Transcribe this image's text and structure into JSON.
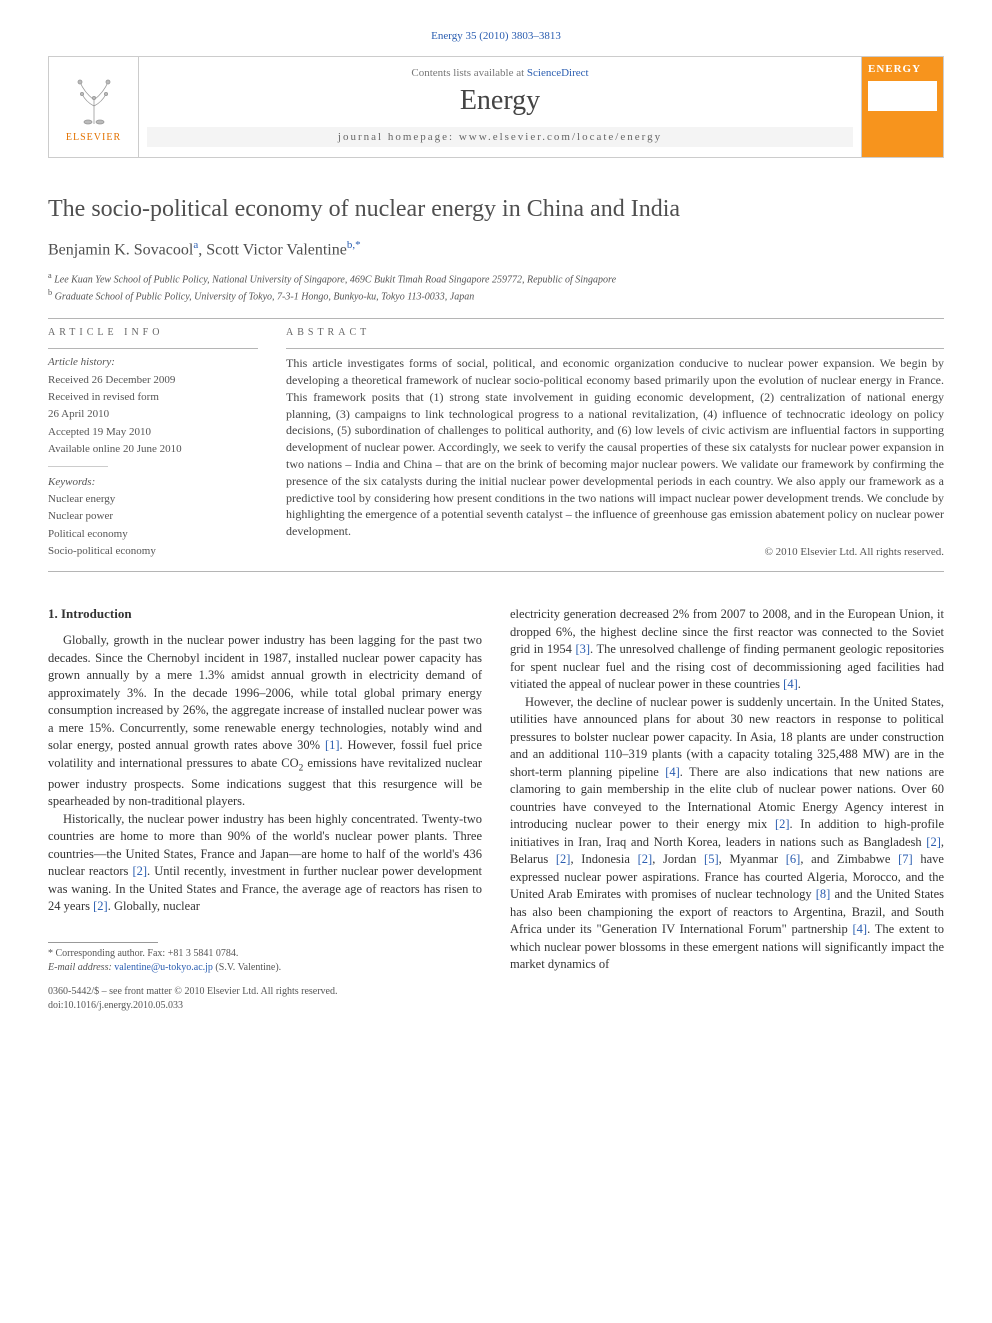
{
  "citation": "Energy 35 (2010) 3803–3813",
  "header": {
    "publisher": "ELSEVIER",
    "contents_prefix": "Contents lists available at ",
    "contents_link": "ScienceDirect",
    "journal": "Energy",
    "homepage_label": "journal homepage: ",
    "homepage_url": "www.elsevier.com/locate/energy",
    "cover_label": "ENERGY"
  },
  "title": "The socio-political economy of nuclear energy in China and India",
  "authors_html": "Benjamin K. Sovacool",
  "author2": "Scott Victor Valentine",
  "aff_a_sup": "a",
  "aff_b_sup": "b,",
  "star": "*",
  "affiliations": {
    "a": "Lee Kuan Yew School of Public Policy, National University of Singapore, 469C Bukit Timah Road Singapore 259772, Republic of Singapore",
    "b": "Graduate School of Public Policy, University of Tokyo, 7-3-1 Hongo, Bunkyo-ku, Tokyo 113-0033, Japan"
  },
  "info": {
    "heading": "ARTICLE INFO",
    "history_label": "Article history:",
    "received": "Received 26 December 2009",
    "revised1": "Received in revised form",
    "revised2": "26 April 2010",
    "accepted": "Accepted 19 May 2010",
    "online": "Available online 20 June 2010",
    "keywords_label": "Keywords:",
    "keywords": [
      "Nuclear energy",
      "Nuclear power",
      "Political economy",
      "Socio-political economy"
    ]
  },
  "abstract": {
    "heading": "ABSTRACT",
    "text": "This article investigates forms of social, political, and economic organization conducive to nuclear power expansion. We begin by developing a theoretical framework of nuclear socio-political economy based primarily upon the evolution of nuclear energy in France. This framework posits that (1) strong state involvement in guiding economic development, (2) centralization of national energy planning, (3) campaigns to link technological progress to a national revitalization, (4) influence of technocratic ideology on policy decisions, (5) subordination of challenges to political authority, and (6) low levels of civic activism are influential factors in supporting development of nuclear power. Accordingly, we seek to verify the causal properties of these six catalysts for nuclear power expansion in two nations – India and China – that are on the brink of becoming major nuclear powers. We validate our framework by confirming the presence of the six catalysts during the initial nuclear power developmental periods in each country. We also apply our framework as a predictive tool by considering how present conditions in the two nations will impact nuclear power development trends. We conclude by highlighting the emergence of a potential seventh catalyst – the influence of greenhouse gas emission abatement policy on nuclear power development.",
    "copyright": "© 2010 Elsevier Ltd. All rights reserved."
  },
  "section1": {
    "heading": "1. Introduction",
    "p1": "Globally, growth in the nuclear power industry has been lagging for the past two decades. Since the Chernobyl incident in 1987, installed nuclear power capacity has grown annually by a mere 1.3% amidst annual growth in electricity demand of approximately 3%. In the decade 1996–2006, while total global primary energy consumption increased by 26%, the aggregate increase of installed nuclear power was a mere 15%. Concurrently, some renewable energy technologies, notably wind and solar energy, posted annual growth rates above 30% [1]. However, fossil fuel price volatility and international pressures to abate CO2 emissions have revitalized nuclear power industry prospects. Some indications suggest that this resurgence will be spearheaded by non-traditional players.",
    "p2": "Historically, the nuclear power industry has been highly concentrated. Twenty-two countries are home to more than 90% of the world's nuclear power plants. Three countries—the United States, France and Japan—are home to half of the world's 436 nuclear reactors [2]. Until recently, investment in further nuclear power development was waning. In the United States and France, the average age of reactors has risen to 24 years [2]. Globally, nuclear",
    "p3": "electricity generation decreased 2% from 2007 to 2008, and in the European Union, it dropped 6%, the highest decline since the first reactor was connected to the Soviet grid in 1954 [3]. The unresolved challenge of finding permanent geologic repositories for spent nuclear fuel and the rising cost of decommissioning aged facilities had vitiated the appeal of nuclear power in these countries [4].",
    "p4": "However, the decline of nuclear power is suddenly uncertain. In the United States, utilities have announced plans for about 30 new reactors in response to political pressures to bolster nuclear power capacity. In Asia, 18 plants are under construction and an additional 110–319 plants (with a capacity totaling 325,488 MW) are in the short-term planning pipeline [4]. There are also indications that new nations are clamoring to gain membership in the elite club of nuclear power nations. Over 60 countries have conveyed to the International Atomic Energy Agency interest in introducing nuclear power to their energy mix [2]. In addition to high-profile initiatives in Iran, Iraq and North Korea, leaders in nations such as Bangladesh [2], Belarus [2], Indonesia [2], Jordan [5], Myanmar [6], and Zimbabwe [7] have expressed nuclear power aspirations. France has courted Algeria, Morocco, and the United Arab Emirates with promises of nuclear technology [8] and the United States has also been championing the export of reactors to Argentina, Brazil, and South Africa under its \"Generation IV International Forum\" partnership [4]. The extent to which nuclear power blossoms in these emergent nations will significantly impact the market dynamics of"
  },
  "footnotes": {
    "corr": "* Corresponding author. Fax: +81 3 5841 0784.",
    "email_label": "E-mail address:",
    "email": "valentine@u-tokyo.ac.jp",
    "email_suffix": "(S.V. Valentine)."
  },
  "footer": {
    "line1": "0360-5442/$ – see front matter © 2010 Elsevier Ltd. All rights reserved.",
    "line2": "doi:10.1016/j.energy.2010.05.033"
  },
  "colors": {
    "link": "#2a5db0",
    "publisher_orange": "#e37200",
    "cover_orange": "#f7941d",
    "text": "#333333",
    "rule": "#b5b5b5"
  }
}
